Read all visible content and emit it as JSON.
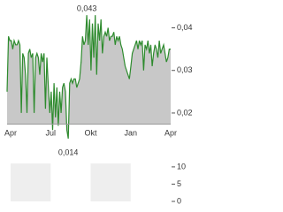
{
  "chart_data": [
    {
      "type": "line",
      "series": [
        {
          "color": "#2e8b2e",
          "values": [
            0.025,
            0.038,
            0.037,
            0.037,
            0.035,
            0.037,
            0.036,
            0.036,
            0.037,
            0.036,
            0.02,
            0.034,
            0.033,
            0.029,
            0.02,
            0.034,
            0.035,
            0.033,
            0.034,
            0.02,
            0.033,
            0.034,
            0.033,
            0.029,
            0.034,
            0.032,
            0.034,
            0.021,
            0.033,
            0.026,
            0.02,
            0.025,
            0.016,
            0.027,
            0.019,
            0.026,
            0.017,
            0.025,
            0.02,
            0.026,
            0.027,
            0.025,
            0.016,
            0.014,
            0.027,
            0.028,
            0.027,
            0.028,
            0.028,
            0.026,
            0.027,
            0.028,
            0.032,
            0.038,
            0.036,
            0.037,
            0.043,
            0.036,
            0.042,
            0.03,
            0.041,
            0.033,
            0.043,
            0.029,
            0.041,
            0.037,
            0.042,
            0.034,
            0.038,
            0.039,
            0.038,
            0.04,
            0.037,
            0.038,
            0.038,
            0.039,
            0.036,
            0.038,
            0.037,
            0.038,
            0.036,
            0.035,
            0.033,
            0.031,
            0.03,
            0.029,
            0.028,
            0.031,
            0.034,
            0.035,
            0.036,
            0.037,
            0.035,
            0.037,
            0.036,
            0.037,
            0.03,
            0.036,
            0.035,
            0.037,
            0.034,
            0.036,
            0.031,
            0.034,
            0.036,
            0.035,
            0.033,
            0.037,
            0.034,
            0.035,
            0.036,
            0.034,
            0.032,
            0.033,
            0.035,
            0.035
          ]
        }
      ],
      "fill": "#c8c8c8",
      "ylim": [
        0.0175,
        0.0455
      ],
      "yticks": [
        {
          "value": 0.02,
          "label": "0,02"
        },
        {
          "value": 0.03,
          "label": "0,03"
        },
        {
          "value": 0.04,
          "label": "0,04"
        }
      ],
      "x_labels": [
        "Apr",
        "Jul",
        "Okt",
        "Jan",
        "Apr"
      ],
      "max_label": "0,043",
      "min_label": "0,014"
    },
    {
      "type": "bar",
      "ylim": [
        0,
        11
      ],
      "yticks": [
        0,
        5,
        10
      ]
    }
  ]
}
